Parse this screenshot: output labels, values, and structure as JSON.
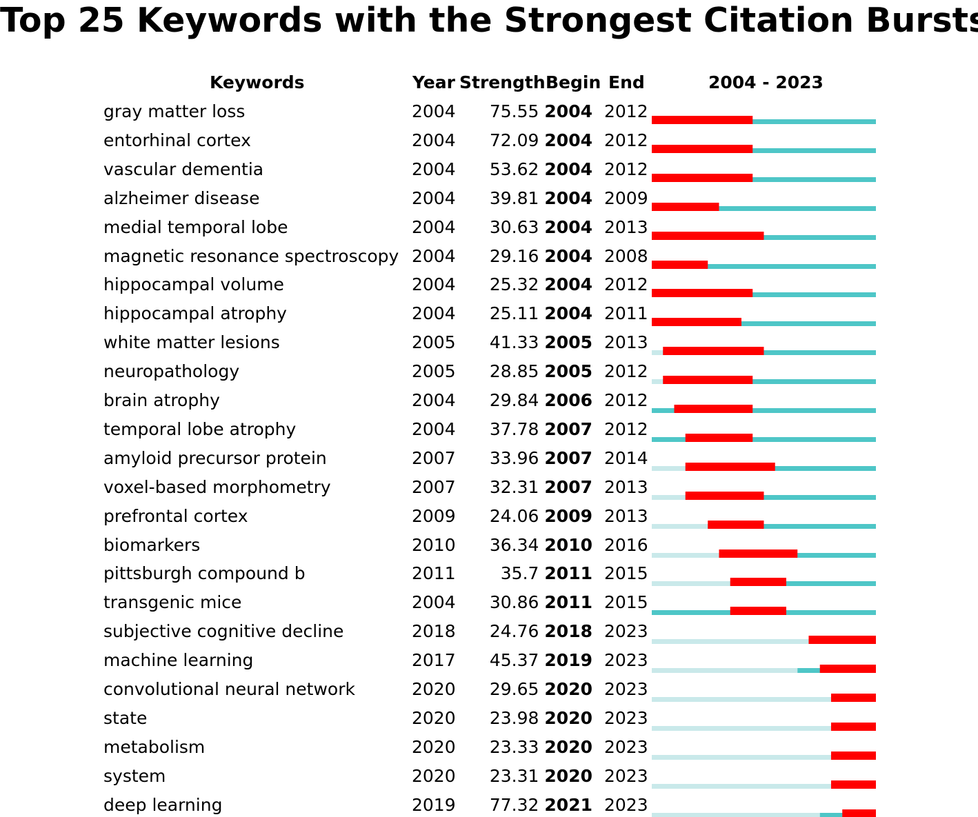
{
  "chart_data": {
    "type": "table",
    "title": "Top 25 Keywords with the Strongest Citation Bursts",
    "columns": {
      "keyword": "Keywords",
      "year": "Year",
      "strength": "Strength",
      "begin": "Begin",
      "end": "End",
      "timeline": "2004 - 2023"
    },
    "range": [
      2004,
      2023
    ],
    "colors": {
      "burst": "#ff0000",
      "active": "#4ec6c7",
      "inactive": "#c9e9ea"
    },
    "rows": [
      {
        "keyword": "gray matter loss",
        "year": 2004,
        "strength": "75.55",
        "begin": 2004,
        "end": 2012
      },
      {
        "keyword": "entorhinal cortex",
        "year": 2004,
        "strength": "72.09",
        "begin": 2004,
        "end": 2012
      },
      {
        "keyword": "vascular dementia",
        "year": 2004,
        "strength": "53.62",
        "begin": 2004,
        "end": 2012
      },
      {
        "keyword": "alzheimer disease",
        "year": 2004,
        "strength": "39.81",
        "begin": 2004,
        "end": 2009
      },
      {
        "keyword": "medial temporal lobe",
        "year": 2004,
        "strength": "30.63",
        "begin": 2004,
        "end": 2013
      },
      {
        "keyword": "magnetic resonance spectroscopy",
        "year": 2004,
        "strength": "29.16",
        "begin": 2004,
        "end": 2008
      },
      {
        "keyword": "hippocampal volume",
        "year": 2004,
        "strength": "25.32",
        "begin": 2004,
        "end": 2012
      },
      {
        "keyword": "hippocampal atrophy",
        "year": 2004,
        "strength": "25.11",
        "begin": 2004,
        "end": 2011
      },
      {
        "keyword": "white matter lesions",
        "year": 2005,
        "strength": "41.33",
        "begin": 2005,
        "end": 2013
      },
      {
        "keyword": "neuropathology",
        "year": 2005,
        "strength": "28.85",
        "begin": 2005,
        "end": 2012
      },
      {
        "keyword": "brain atrophy",
        "year": 2004,
        "strength": "29.84",
        "begin": 2006,
        "end": 2012
      },
      {
        "keyword": "temporal lobe atrophy",
        "year": 2004,
        "strength": "37.78",
        "begin": 2007,
        "end": 2012
      },
      {
        "keyword": "amyloid precursor protein",
        "year": 2007,
        "strength": "33.96",
        "begin": 2007,
        "end": 2014
      },
      {
        "keyword": "voxel-based morphometry",
        "year": 2007,
        "strength": "32.31",
        "begin": 2007,
        "end": 2013
      },
      {
        "keyword": "prefrontal cortex",
        "year": 2009,
        "strength": "24.06",
        "begin": 2009,
        "end": 2013
      },
      {
        "keyword": "biomarkers",
        "year": 2010,
        "strength": "36.34",
        "begin": 2010,
        "end": 2016
      },
      {
        "keyword": "pittsburgh compound b",
        "year": 2011,
        "strength": "35.7",
        "begin": 2011,
        "end": 2015
      },
      {
        "keyword": "transgenic mice",
        "year": 2004,
        "strength": "30.86",
        "begin": 2011,
        "end": 2015
      },
      {
        "keyword": "subjective cognitive decline",
        "year": 2018,
        "strength": "24.76",
        "begin": 2018,
        "end": 2023
      },
      {
        "keyword": "machine learning",
        "year": 2017,
        "strength": "45.37",
        "begin": 2019,
        "end": 2023
      },
      {
        "keyword": "convolutional neural network",
        "year": 2020,
        "strength": "29.65",
        "begin": 2020,
        "end": 2023
      },
      {
        "keyword": "state",
        "year": 2020,
        "strength": "23.98",
        "begin": 2020,
        "end": 2023
      },
      {
        "keyword": "metabolism",
        "year": 2020,
        "strength": "23.33",
        "begin": 2020,
        "end": 2023
      },
      {
        "keyword": "system",
        "year": 2020,
        "strength": "23.31",
        "begin": 2020,
        "end": 2023
      },
      {
        "keyword": "deep learning",
        "year": 2019,
        "strength": "77.32",
        "begin": 2021,
        "end": 2023
      }
    ]
  }
}
